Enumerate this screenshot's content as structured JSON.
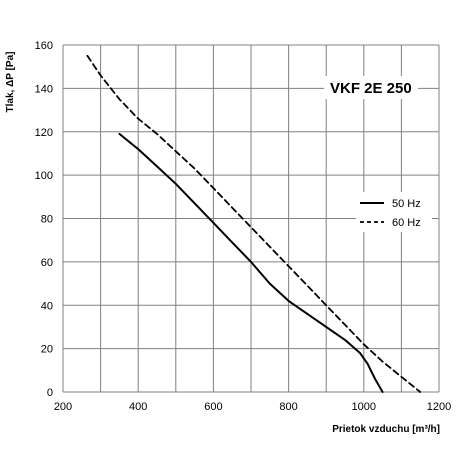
{
  "chart_data": {
    "type": "line",
    "title": "VKF 2E 250",
    "xlabel": "Prietok vzduchu  [m³/h]",
    "ylabel": "Tlak, ΔP [Pa]",
    "xlim": [
      200,
      1200
    ],
    "ylim": [
      0,
      160
    ],
    "x_ticks": [
      200,
      400,
      600,
      800,
      1000,
      1200
    ],
    "y_ticks": [
      0,
      20,
      40,
      60,
      80,
      100,
      120,
      140,
      160
    ],
    "grid": true,
    "grid_x_step": 100,
    "grid_y_step": 20,
    "legend_position": "right",
    "series": [
      {
        "name": "50 Hz",
        "style": "solid",
        "color": "#000000",
        "x": [
          350,
          400,
          450,
          500,
          550,
          600,
          650,
          700,
          750,
          800,
          850,
          900,
          950,
          990,
          1010,
          1030,
          1050
        ],
        "y": [
          119,
          112,
          104,
          96,
          87,
          78,
          69,
          60,
          50,
          42,
          36,
          30,
          24,
          18,
          13,
          6,
          0
        ]
      },
      {
        "name": "60 Hz",
        "style": "dashed",
        "color": "#000000",
        "x": [
          265,
          300,
          350,
          400,
          450,
          500,
          550,
          600,
          650,
          700,
          750,
          800,
          850,
          900,
          950,
          1000,
          1050,
          1100,
          1150
        ],
        "y": [
          155,
          146,
          135,
          126,
          119,
          111,
          103,
          94,
          85,
          76,
          67,
          58,
          49,
          40,
          31,
          22,
          14,
          7,
          0
        ]
      }
    ]
  }
}
